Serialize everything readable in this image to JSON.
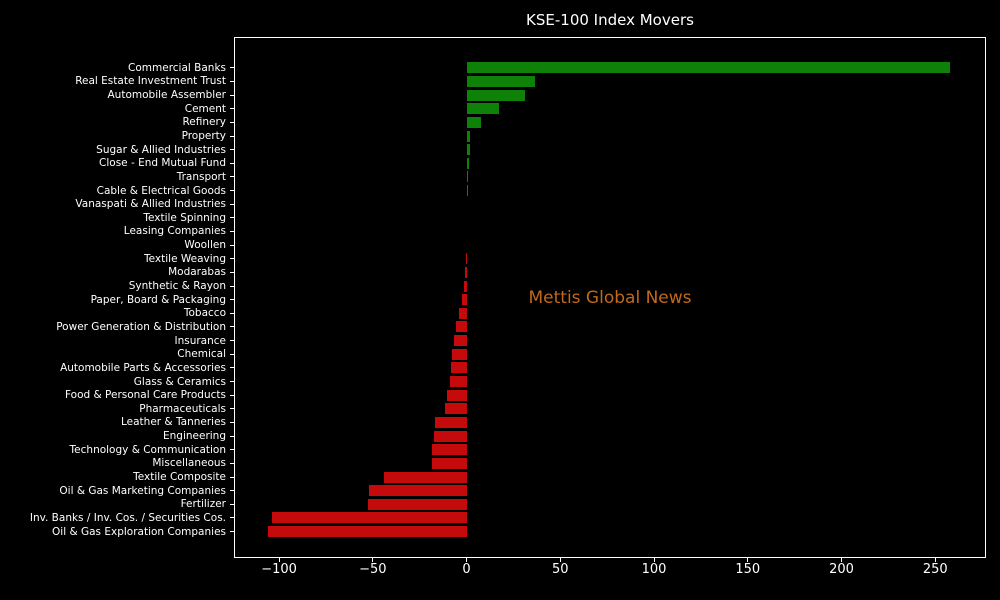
{
  "title": "KSE-100 Index Movers",
  "watermark": {
    "text": "Mettis Global News",
    "color": "#c1691b"
  },
  "colors": {
    "background": "#000000",
    "axes": "#ffffff",
    "text": "#ffffff",
    "positive_bar": "#0e8208",
    "negative_bar": "#c40a0a"
  },
  "chart_data": {
    "type": "bar",
    "orientation": "horizontal",
    "title": "KSE-100 Index Movers",
    "xlabel": "",
    "ylabel": "",
    "grid": false,
    "legend": null,
    "xlim": [
      -123.5,
      276.5
    ],
    "xticks": [
      -100,
      -50,
      0,
      50,
      100,
      150,
      200,
      250
    ],
    "xtick_labels": [
      "−100",
      "−50",
      "0",
      "50",
      "100",
      "150",
      "200",
      "250"
    ],
    "categories": [
      "Commercial Banks",
      "Real Estate Investment Trust",
      "Automobile Assembler",
      "Cement",
      "Refinery",
      "Property",
      "Sugar & Allied Industries",
      "Close - End Mutual Fund",
      "Transport",
      "Cable & Electrical Goods",
      "Vanaspati & Allied Industries",
      "Textile Spinning",
      "Leasing Companies",
      "Woollen",
      "Textile Weaving",
      "Modarabas",
      "Synthetic & Rayon",
      "Paper, Board & Packaging",
      "Tobacco",
      "Power Generation & Distribution",
      "Insurance",
      "Chemical",
      "Automobile Parts & Accessories",
      "Glass & Ceramics",
      "Food & Personal Care Products",
      "Pharmaceuticals",
      "Leather & Tanneries",
      "Engineering",
      "Technology & Communication",
      "Miscellaneous",
      "Textile Composite",
      "Oil & Gas Marketing Companies",
      "Fertilizer",
      "Inv. Banks / Inv. Cos. / Securities Cos.",
      "Oil & Gas Exploration Companies"
    ],
    "values": [
      258.0,
      36.5,
      31.4,
      17.4,
      7.8,
      2.0,
      1.9,
      1.1,
      0.5,
      0.5,
      0.0,
      0.0,
      0.0,
      0.0,
      -0.5,
      -0.6,
      -1.6,
      -2.5,
      -4.3,
      -5.7,
      -6.7,
      -7.8,
      -8.2,
      -9.0,
      -10.3,
      -11.7,
      -17.0,
      -17.6,
      -18.3,
      -18.5,
      -44.1,
      -51.9,
      -52.4,
      -103.9,
      -106.0
    ],
    "bar_color_rule": "green if value > 0, red if value < 0"
  }
}
